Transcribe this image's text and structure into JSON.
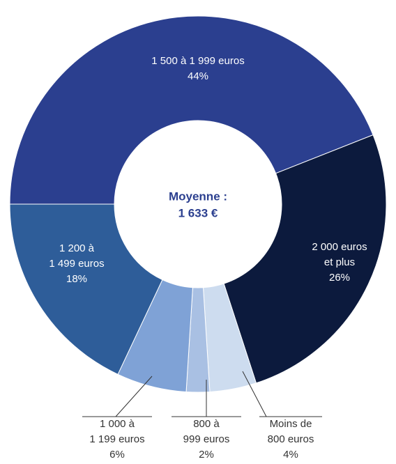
{
  "chart_data": {
    "type": "donut",
    "center_label": [
      "Moyenne :",
      "1 633 €"
    ],
    "categories": [
      [
        "1 500 à 1 999 euros"
      ],
      [
        "2 000 euros",
        "et plus"
      ],
      [
        "Moins de",
        "800 euros"
      ],
      [
        "800 à",
        "999 euros"
      ],
      [
        "1 000 à",
        "1 199 euros"
      ],
      [
        "1 200 à",
        "1 499 euros"
      ]
    ],
    "values": [
      44,
      26,
      4,
      2,
      6,
      18
    ],
    "value_labels": [
      "44%",
      "26%",
      "4%",
      "2%",
      "6%",
      "18%"
    ],
    "colors": [
      "#2b3f8f",
      "#0c1a3d",
      "#cddcef",
      "#a9c0e3",
      "#7fa2d6",
      "#2e5d99"
    ]
  }
}
